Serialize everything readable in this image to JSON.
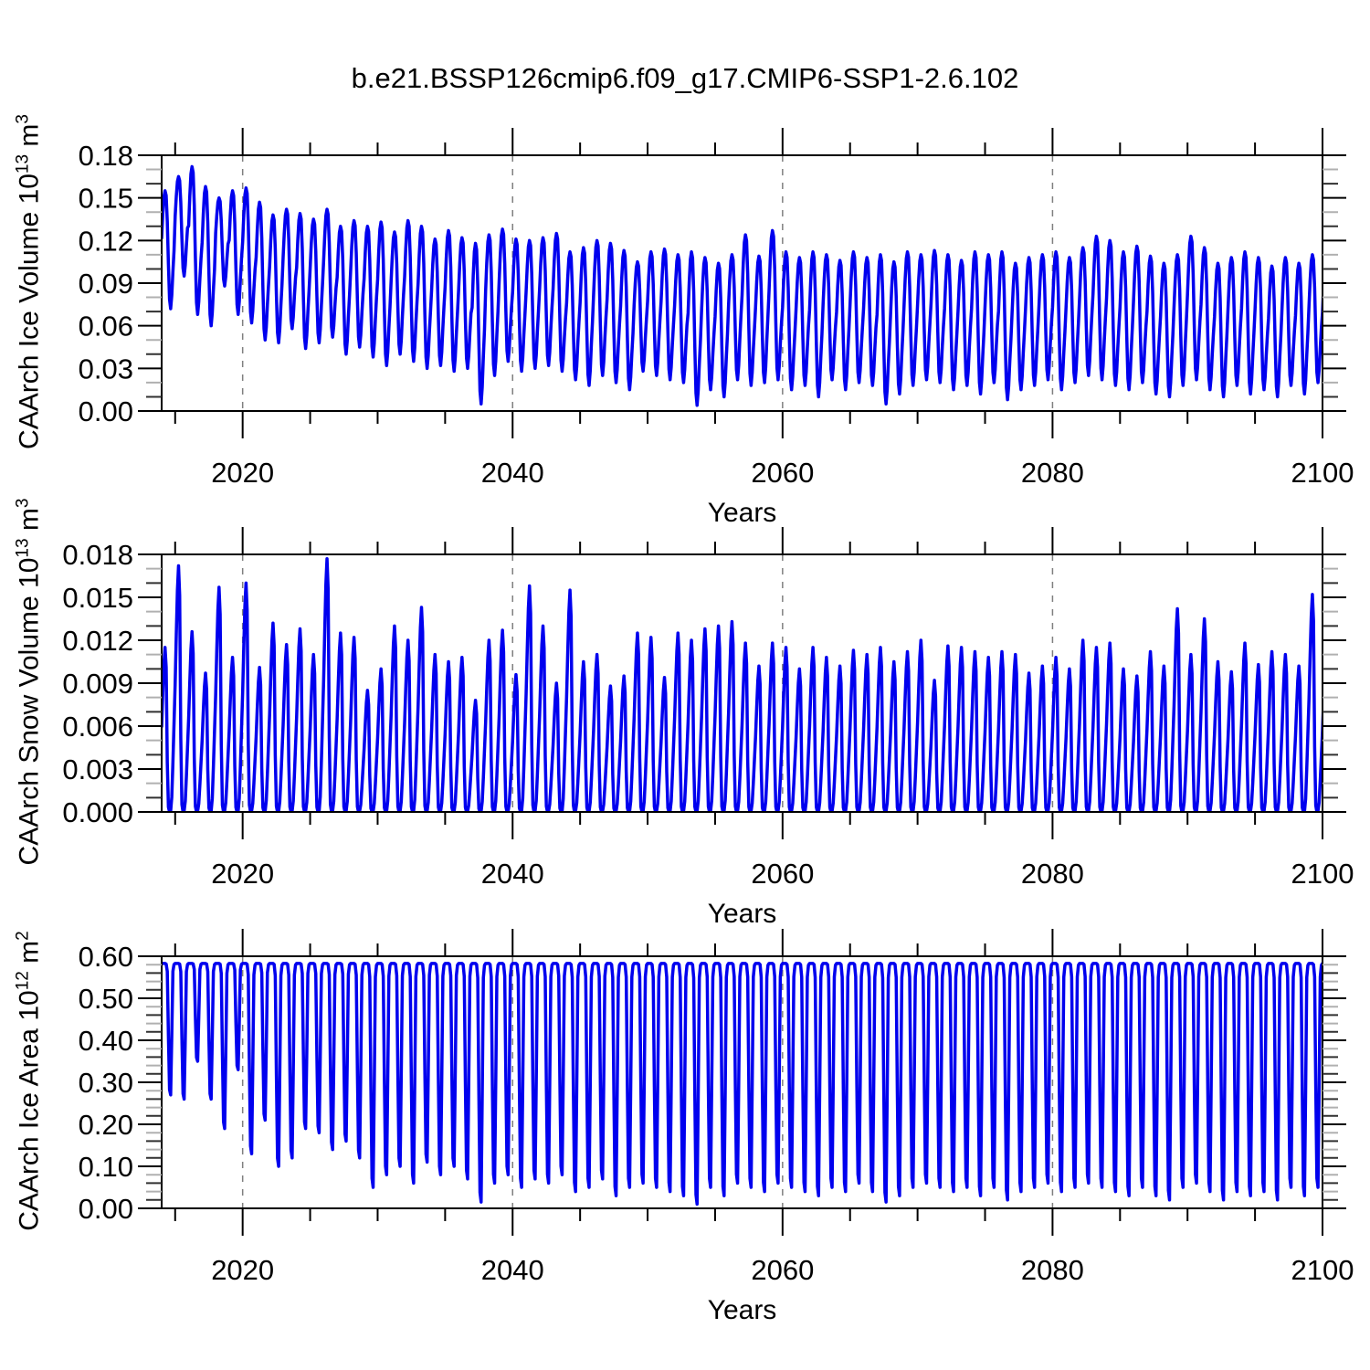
{
  "title": "b.e21.BSSP126cmip6.f09_g17.CMIP6-SSP1-2.6.102",
  "chart_data": [
    {
      "name": "caarch-ice-volume",
      "type": "line",
      "xlabel": "Years",
      "ylabel_text": "CAArch Ice Volume 10¹³ m³",
      "ylabel_parts": {
        "base": "CAArch Ice Volume 10",
        "exp": "13",
        "unit": " m",
        "unit_exp": "3"
      },
      "xlim": [
        2014,
        2100
      ],
      "ylim": [
        0,
        0.18
      ],
      "line_color": "#0000ee",
      "grid_color": "#7f7f7f",
      "xticks": {
        "labels": [
          "2020",
          "2040",
          "2060",
          "2080",
          "2100"
        ],
        "values": [
          2020,
          2040,
          2060,
          2080,
          2100
        ],
        "minor_step": 5
      },
      "yticks": {
        "labels": [
          "0.00",
          "0.03",
          "0.06",
          "0.09",
          "0.12",
          "0.15",
          "0.18"
        ],
        "values": [
          0,
          0.03,
          0.06,
          0.09,
          0.12,
          0.15,
          0.18
        ],
        "minor_step": 0.01
      },
      "grid_x_years": [
        2020,
        2040,
        2060,
        2080
      ],
      "series": {
        "profile_mode": "minmax",
        "year_start": 2014,
        "seasonal_profile": [
          0.6,
          0.8,
          0.95,
          1.0,
          0.96,
          0.74,
          0.38,
          0.08,
          0.0,
          0.1,
          0.28,
          0.44
        ],
        "annual_max": [
          0.155,
          0.165,
          0.172,
          0.158,
          0.15,
          0.155,
          0.157,
          0.147,
          0.138,
          0.142,
          0.139,
          0.135,
          0.142,
          0.13,
          0.134,
          0.13,
          0.133,
          0.126,
          0.134,
          0.13,
          0.121,
          0.127,
          0.122,
          0.118,
          0.124,
          0.128,
          0.121,
          0.12,
          0.122,
          0.125,
          0.112,
          0.115,
          0.12,
          0.118,
          0.113,
          0.105,
          0.112,
          0.114,
          0.11,
          0.112,
          0.108,
          0.104,
          0.11,
          0.124,
          0.109,
          0.127,
          0.112,
          0.108,
          0.112,
          0.11,
          0.106,
          0.112,
          0.108,
          0.11,
          0.105,
          0.112,
          0.11,
          0.113,
          0.11,
          0.106,
          0.112,
          0.11,
          0.112,
          0.104,
          0.108,
          0.11,
          0.112,
          0.108,
          0.115,
          0.123,
          0.12,
          0.112,
          0.116,
          0.109,
          0.104,
          0.11,
          0.123,
          0.115,
          0.104,
          0.108,
          0.112,
          0.108,
          0.102,
          0.108,
          0.104,
          0.11,
          0.108
        ],
        "annual_min": [
          0.072,
          0.095,
          0.068,
          0.06,
          0.088,
          0.068,
          0.062,
          0.05,
          0.048,
          0.058,
          0.044,
          0.048,
          0.052,
          0.04,
          0.045,
          0.038,
          0.032,
          0.04,
          0.035,
          0.03,
          0.032,
          0.028,
          0.03,
          0.005,
          0.025,
          0.035,
          0.028,
          0.03,
          0.032,
          0.028,
          0.022,
          0.018,
          0.025,
          0.02,
          0.015,
          0.028,
          0.025,
          0.022,
          0.02,
          0.004,
          0.015,
          0.01,
          0.022,
          0.018,
          0.02,
          0.022,
          0.015,
          0.018,
          0.01,
          0.022,
          0.015,
          0.02,
          0.018,
          0.005,
          0.012,
          0.018,
          0.022,
          0.02,
          0.015,
          0.018,
          0.012,
          0.02,
          0.008,
          0.015,
          0.018,
          0.022,
          0.015,
          0.02,
          0.025,
          0.022,
          0.018,
          0.015,
          0.02,
          0.012,
          0.01,
          0.018,
          0.022,
          0.015,
          0.01,
          0.018,
          0.012,
          0.015,
          0.01,
          0.018,
          0.012,
          0.02,
          0.012
        ]
      }
    },
    {
      "name": "caarch-snow-volume",
      "type": "line",
      "xlabel": "Years",
      "ylabel_text": "CAArch Snow Volume 10¹³ m³",
      "ylabel_parts": {
        "base": "CAArch Snow Volume 10",
        "exp": "13",
        "unit": " m",
        "unit_exp": "3"
      },
      "xlim": [
        2014,
        2100
      ],
      "ylim": [
        0,
        0.018
      ],
      "line_color": "#0000ee",
      "grid_color": "#7f7f7f",
      "xticks": {
        "labels": [
          "2020",
          "2040",
          "2060",
          "2080",
          "2100"
        ],
        "values": [
          2020,
          2040,
          2060,
          2080,
          2100
        ],
        "minor_step": 5
      },
      "yticks": {
        "labels": [
          "0.000",
          "0.003",
          "0.006",
          "0.009",
          "0.012",
          "0.015",
          "0.018"
        ],
        "values": [
          0,
          0.003,
          0.006,
          0.009,
          0.012,
          0.015,
          0.018
        ],
        "minor_step": 0.001
      },
      "grid_x_years": [
        2020,
        2040,
        2060,
        2080
      ],
      "series": {
        "profile_mode": "peak",
        "year_start": 2014,
        "seasonal_profile": [
          0.52,
          0.72,
          0.9,
          1.0,
          0.88,
          0.3,
          0.03,
          0.0,
          0.005,
          0.06,
          0.2,
          0.36
        ],
        "annual_peak": [
          0.0115,
          0.0172,
          0.0126,
          0.0097,
          0.0157,
          0.0108,
          0.016,
          0.0101,
          0.0132,
          0.0117,
          0.0128,
          0.011,
          0.0177,
          0.0125,
          0.0122,
          0.0085,
          0.01,
          0.013,
          0.012,
          0.0143,
          0.011,
          0.0105,
          0.0108,
          0.0078,
          0.012,
          0.0127,
          0.0096,
          0.0158,
          0.013,
          0.009,
          0.0155,
          0.0105,
          0.011,
          0.0088,
          0.0095,
          0.0125,
          0.0122,
          0.0094,
          0.0125,
          0.012,
          0.0128,
          0.013,
          0.0133,
          0.0118,
          0.0102,
          0.0118,
          0.0115,
          0.01,
          0.0115,
          0.0108,
          0.0102,
          0.0113,
          0.011,
          0.0115,
          0.0105,
          0.0112,
          0.012,
          0.0092,
          0.0116,
          0.0115,
          0.0112,
          0.0108,
          0.0112,
          0.011,
          0.0097,
          0.0102,
          0.0108,
          0.01,
          0.012,
          0.0115,
          0.0118,
          0.01,
          0.0095,
          0.0112,
          0.0102,
          0.0142,
          0.011,
          0.0135,
          0.0105,
          0.0098,
          0.0118,
          0.0103,
          0.0112,
          0.011,
          0.0102,
          0.0152,
          0.011
        ]
      }
    },
    {
      "name": "caarch-ice-area",
      "type": "line",
      "xlabel": "Years",
      "ylabel_text": "CAArch Ice Area 10¹² m²",
      "ylabel_parts": {
        "base": "CAArch Ice Area 10",
        "exp": "12",
        "unit": " m",
        "unit_exp": "2"
      },
      "xlim": [
        2014,
        2100
      ],
      "ylim": [
        0,
        0.6
      ],
      "line_color": "#0000ee",
      "grid_color": "#7f7f7f",
      "xticks": {
        "labels": [
          "2020",
          "2040",
          "2060",
          "2080",
          "2100"
        ],
        "values": [
          2020,
          2040,
          2060,
          2080,
          2100
        ],
        "minor_step": 5
      },
      "yticks": {
        "labels": [
          "0.00",
          "0.10",
          "0.20",
          "0.30",
          "0.40",
          "0.50",
          "0.60"
        ],
        "values": [
          0,
          0.1,
          0.2,
          0.3,
          0.4,
          0.5,
          0.6
        ],
        "minor_step": 0.02
      },
      "grid_x_years": [
        2020,
        2040,
        2060,
        2080
      ],
      "series": {
        "profile_mode": "cap-dip",
        "year_start": 2014,
        "cap": 0.583,
        "seasonal_profile": [
          0,
          0,
          0,
          0,
          0.005,
          0.06,
          0.55,
          0.96,
          1.0,
          0.55,
          0.06,
          0.008
        ],
        "annual_min": [
          0.27,
          0.26,
          0.35,
          0.26,
          0.19,
          0.33,
          0.13,
          0.21,
          0.1,
          0.12,
          0.19,
          0.18,
          0.14,
          0.16,
          0.12,
          0.05,
          0.08,
          0.1,
          0.06,
          0.11,
          0.08,
          0.1,
          0.07,
          0.015,
          0.06,
          0.08,
          0.05,
          0.07,
          0.06,
          0.08,
          0.04,
          0.05,
          0.07,
          0.03,
          0.05,
          0.06,
          0.05,
          0.04,
          0.03,
          0.01,
          0.05,
          0.03,
          0.06,
          0.05,
          0.04,
          0.06,
          0.05,
          0.04,
          0.03,
          0.05,
          0.04,
          0.06,
          0.04,
          0.015,
          0.03,
          0.05,
          0.06,
          0.05,
          0.04,
          0.05,
          0.03,
          0.05,
          0.02,
          0.04,
          0.05,
          0.06,
          0.04,
          0.05,
          0.06,
          0.05,
          0.04,
          0.03,
          0.05,
          0.03,
          0.02,
          0.05,
          0.06,
          0.04,
          0.02,
          0.04,
          0.03,
          0.04,
          0.02,
          0.05,
          0.03,
          0.05,
          0.03
        ]
      }
    }
  ]
}
